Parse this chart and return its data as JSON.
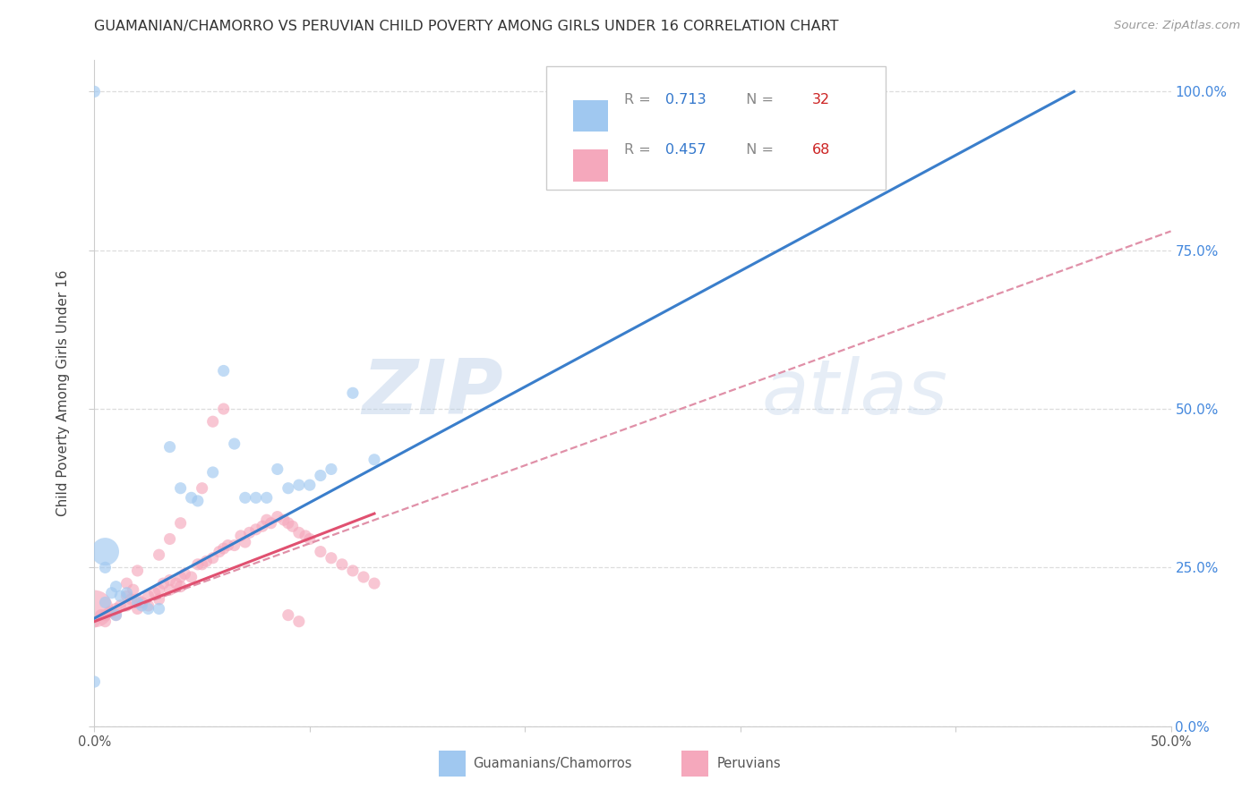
{
  "title": "GUAMANIAN/CHAMORRO VS PERUVIAN CHILD POVERTY AMONG GIRLS UNDER 16 CORRELATION CHART",
  "source": "Source: ZipAtlas.com",
  "ylabel": "Child Poverty Among Girls Under 16",
  "r1": 0.713,
  "n1": 32,
  "r2": 0.457,
  "n2": 68,
  "color_blue": "#a0c8f0",
  "color_pink": "#f5a8bc",
  "color_blue_line": "#3a7ecb",
  "color_pink_line": "#e05070",
  "color_pink_dashed": "#e090a8",
  "legend_label1": "Guamanians/Chamorros",
  "legend_label2": "Peruvians",
  "watermark_text": "ZIPatlas",
  "blue_x": [
    0.005,
    0.005,
    0.005,
    0.008,
    0.01,
    0.01,
    0.012,
    0.015,
    0.02,
    0.022,
    0.025,
    0.03,
    0.035,
    0.04,
    0.045,
    0.048,
    0.055,
    0.06,
    0.065,
    0.07,
    0.075,
    0.08,
    0.085,
    0.09,
    0.095,
    0.1,
    0.105,
    0.11,
    0.12,
    0.13,
    0.0,
    0.0
  ],
  "blue_y": [
    0.275,
    0.25,
    0.195,
    0.21,
    0.22,
    0.175,
    0.205,
    0.21,
    0.195,
    0.19,
    0.185,
    0.185,
    0.44,
    0.375,
    0.36,
    0.355,
    0.4,
    0.56,
    0.445,
    0.36,
    0.36,
    0.36,
    0.405,
    0.375,
    0.38,
    0.38,
    0.395,
    0.405,
    0.525,
    0.42,
    0.07,
    1.0
  ],
  "blue_s_base": 90,
  "blue_big_idx": [
    0,
    31
  ],
  "blue_big_s": [
    500,
    90
  ],
  "pink_x": [
    0.0,
    0.0,
    0.003,
    0.005,
    0.005,
    0.007,
    0.008,
    0.01,
    0.01,
    0.012,
    0.015,
    0.015,
    0.017,
    0.018,
    0.02,
    0.02,
    0.022,
    0.025,
    0.025,
    0.028,
    0.03,
    0.03,
    0.032,
    0.035,
    0.035,
    0.038,
    0.04,
    0.04,
    0.042,
    0.045,
    0.048,
    0.05,
    0.052,
    0.055,
    0.058,
    0.06,
    0.062,
    0.065,
    0.068,
    0.07,
    0.072,
    0.075,
    0.078,
    0.08,
    0.082,
    0.085,
    0.088,
    0.09,
    0.092,
    0.095,
    0.098,
    0.1,
    0.105,
    0.11,
    0.115,
    0.12,
    0.125,
    0.13,
    0.09,
    0.095,
    0.015,
    0.02,
    0.03,
    0.035,
    0.04,
    0.05,
    0.055,
    0.06
  ],
  "pink_y": [
    0.185,
    0.165,
    0.175,
    0.165,
    0.175,
    0.18,
    0.18,
    0.175,
    0.185,
    0.19,
    0.19,
    0.205,
    0.2,
    0.215,
    0.185,
    0.2,
    0.195,
    0.19,
    0.205,
    0.21,
    0.2,
    0.215,
    0.225,
    0.215,
    0.23,
    0.225,
    0.22,
    0.235,
    0.24,
    0.235,
    0.255,
    0.255,
    0.26,
    0.265,
    0.275,
    0.28,
    0.285,
    0.285,
    0.3,
    0.29,
    0.305,
    0.31,
    0.315,
    0.325,
    0.32,
    0.33,
    0.325,
    0.32,
    0.315,
    0.305,
    0.3,
    0.295,
    0.275,
    0.265,
    0.255,
    0.245,
    0.235,
    0.225,
    0.175,
    0.165,
    0.225,
    0.245,
    0.27,
    0.295,
    0.32,
    0.375,
    0.48,
    0.5
  ],
  "pink_s_base": 90,
  "pink_big_idx": [
    0
  ],
  "pink_big_s": [
    900
  ],
  "blue_line": [
    0.0,
    0.455,
    0.17,
    1.0
  ],
  "pink_dashed_line": [
    0.0,
    0.5,
    0.165,
    0.78
  ],
  "pink_solid_line": [
    0.0,
    0.13,
    0.165,
    0.335
  ]
}
